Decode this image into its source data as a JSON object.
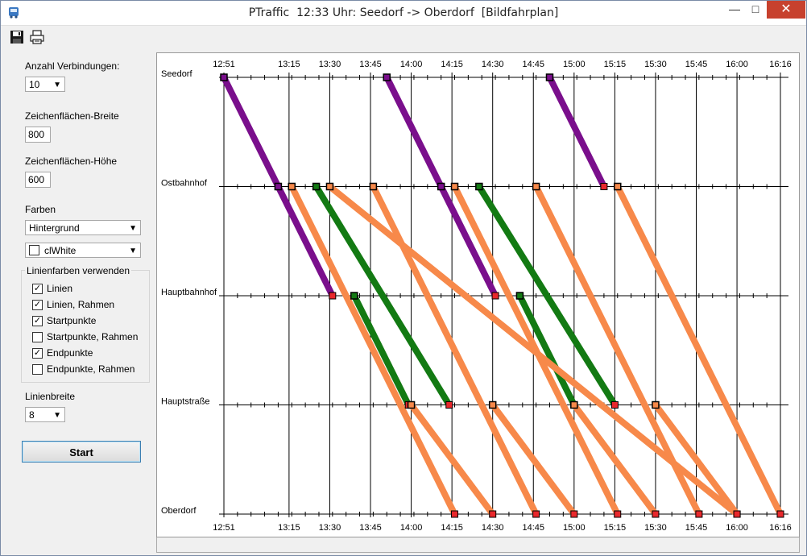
{
  "window": {
    "title": "PTraffic  12:33 Uhr: Seedorf -> Oberdorf  [Bildfahrplan]",
    "min_glyph": "—",
    "max_glyph": "□",
    "close_glyph": "✕"
  },
  "toolbar": {
    "save_icon": "floppy-disk-icon",
    "print_icon": "printer-icon"
  },
  "panel": {
    "connections_label": "Anzahl Verbindungen:",
    "connections_value": "10",
    "width_label": "Zeichenflächen-Breite",
    "width_value": "800",
    "height_label": "Zeichenflächen-Höhe",
    "height_value": "600",
    "colors_label": "Farben",
    "color_target": "Hintergrund",
    "color_value": "clWhite",
    "group_title": "Linienfarben verwenden",
    "checkboxes": [
      {
        "label": "Linien",
        "checked": true
      },
      {
        "label": "Linien, Rahmen",
        "checked": true
      },
      {
        "label": "Startpunkte",
        "checked": true
      },
      {
        "label": "Startpunkte, Rahmen",
        "checked": false
      },
      {
        "label": "Endpunkte",
        "checked": true
      },
      {
        "label": "Endpunkte, Rahmen",
        "checked": false
      }
    ],
    "line_width_label": "Linienbreite",
    "line_width_value": "8",
    "start_button": "Start"
  },
  "chart_data": {
    "type": "line",
    "stations": [
      "Seedorf",
      "Ostbahnhof",
      "Hauptbahnhof",
      "Hauptstraße",
      "Oberdorf"
    ],
    "time_ticks": [
      "12:51",
      "13:15",
      "13:30",
      "13:45",
      "14:00",
      "14:15",
      "14:30",
      "14:45",
      "15:00",
      "15:15",
      "15:30",
      "15:45",
      "16:00",
      "16:16"
    ],
    "time_range": [
      "12:51",
      "16:16"
    ],
    "colors": {
      "purple": "#7a0f8c",
      "green": "#137a13",
      "orange": "#f7894a",
      "start_marker": "#2e6b2e",
      "end_marker": "#e8282c"
    },
    "series": [
      {
        "color": "purple",
        "points": [
          [
            "12:51",
            0
          ],
          [
            "13:11",
            1
          ]
        ]
      },
      {
        "color": "purple",
        "points": [
          [
            "13:11",
            1
          ],
          [
            "13:31",
            2
          ]
        ]
      },
      {
        "color": "purple",
        "points": [
          [
            "13:51",
            0
          ],
          [
            "14:11",
            1
          ]
        ]
      },
      {
        "color": "purple",
        "points": [
          [
            "14:11",
            1
          ],
          [
            "14:31",
            2
          ]
        ]
      },
      {
        "color": "purple",
        "points": [
          [
            "14:51",
            0
          ],
          [
            "15:11",
            1
          ]
        ]
      },
      {
        "color": "green",
        "points": [
          [
            "13:25",
            1
          ],
          [
            "14:14",
            3
          ]
        ]
      },
      {
        "color": "green",
        "points": [
          [
            "13:39",
            2
          ],
          [
            "13:59",
            3
          ]
        ]
      },
      {
        "color": "green",
        "points": [
          [
            "14:25",
            1
          ],
          [
            "15:15",
            3
          ]
        ]
      },
      {
        "color": "green",
        "points": [
          [
            "14:40",
            2
          ],
          [
            "15:00",
            3
          ]
        ]
      },
      {
        "color": "orange",
        "points": [
          [
            "13:16",
            1
          ],
          [
            "14:16",
            4
          ]
        ]
      },
      {
        "color": "orange",
        "points": [
          [
            "13:30",
            1
          ],
          [
            "16:00",
            4
          ]
        ]
      },
      {
        "color": "orange",
        "points": [
          [
            "13:46",
            1
          ],
          [
            "14:46",
            4
          ]
        ]
      },
      {
        "color": "orange",
        "points": [
          [
            "14:16",
            1
          ],
          [
            "15:16",
            4
          ]
        ]
      },
      {
        "color": "orange",
        "points": [
          [
            "14:46",
            1
          ],
          [
            "15:46",
            4
          ]
        ]
      },
      {
        "color": "orange",
        "points": [
          [
            "15:16",
            1
          ],
          [
            "16:16",
            4
          ]
        ]
      },
      {
        "color": "orange",
        "points": [
          [
            "14:00",
            3
          ],
          [
            "14:30",
            4
          ]
        ]
      },
      {
        "color": "orange",
        "points": [
          [
            "14:30",
            3
          ],
          [
            "15:00",
            4
          ]
        ]
      },
      {
        "color": "orange",
        "points": [
          [
            "15:00",
            3
          ],
          [
            "15:30",
            4
          ]
        ]
      },
      {
        "color": "orange",
        "points": [
          [
            "15:30",
            3
          ],
          [
            "16:00",
            4
          ]
        ]
      }
    ]
  }
}
